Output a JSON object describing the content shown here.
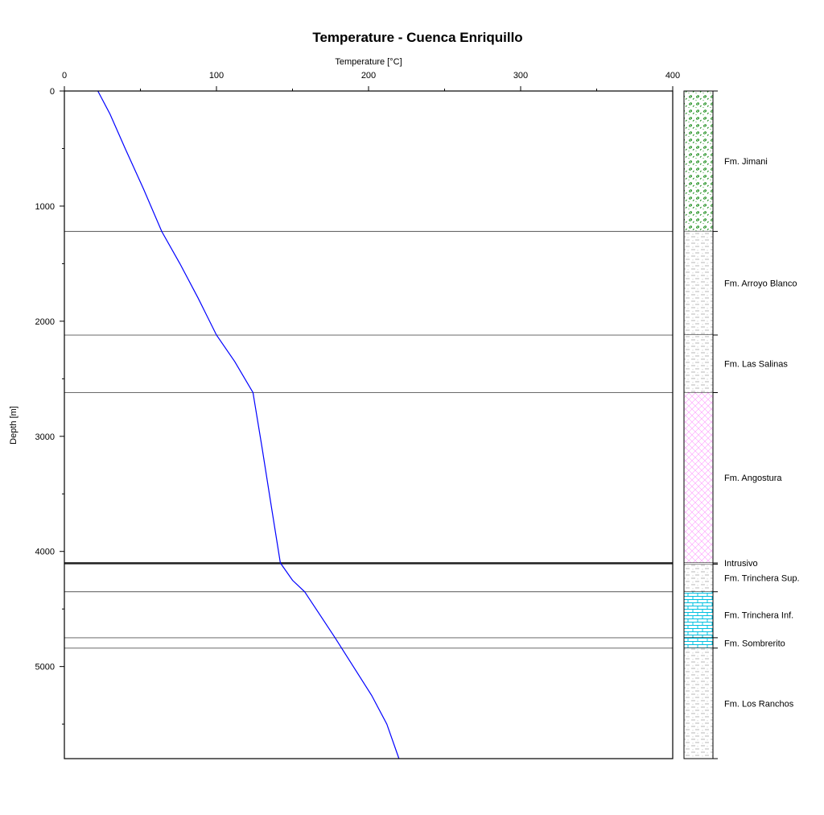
{
  "chart_data": {
    "type": "line",
    "title": "Temperature - Cuenca Enriquillo",
    "xlabel": "Temperature [°C]",
    "ylabel": "Depth [m]",
    "xlim": [
      0,
      400
    ],
    "ylim": [
      0,
      5800
    ],
    "x_ticks": [
      0,
      100,
      200,
      300,
      400
    ],
    "y_ticks": [
      0,
      1000,
      2000,
      3000,
      4000,
      5000
    ],
    "x_tick_labels": [
      "0",
      "100",
      "200",
      "300",
      "400"
    ],
    "y_tick_labels": [
      "0",
      "1000",
      "2000",
      "3000",
      "4000",
      "5000"
    ],
    "y_inverted": true,
    "x_axis_position": "top",
    "grid": false,
    "line_color": "#0000ff",
    "series": [
      {
        "x": [
          22,
          30,
          40,
          52,
          64,
          76,
          88,
          100,
          112,
          124,
          130,
          136,
          142,
          150,
          158,
          168,
          178,
          190,
          202,
          212,
          220
        ],
        "y": [
          0,
          200,
          500,
          850,
          1220,
          1500,
          1800,
          2120,
          2350,
          2620,
          3100,
          3600,
          4100,
          4250,
          4350,
          4550,
          4750,
          5000,
          5250,
          5500,
          5800
        ]
      }
    ],
    "formations": [
      {
        "name": "Fm. Jimani",
        "top": 0,
        "bottom": 1220,
        "pattern": "jimani",
        "color": "#008000",
        "boundary_line": "thin"
      },
      {
        "name": "Fm. Arroyo Blanco",
        "top": 1220,
        "bottom": 2120,
        "pattern": "shale",
        "color": "#a0a0a0",
        "boundary_line": "thin"
      },
      {
        "name": "Fm. Las Salinas",
        "top": 2120,
        "bottom": 2620,
        "pattern": "shale",
        "color": "#a0a0a0",
        "boundary_line": "thin"
      },
      {
        "name": "Fm. Angostura",
        "top": 2620,
        "bottom": 4100,
        "pattern": "cross",
        "color": "#ff99ff",
        "boundary_line": "thick"
      },
      {
        "name": "Intrusivo",
        "top": 4100,
        "bottom": 4110,
        "pattern": "none",
        "color": "#000000",
        "boundary_line": "thin"
      },
      {
        "name": "Fm. Trinchera Sup.",
        "top": 4110,
        "bottom": 4350,
        "pattern": "shale",
        "color": "#a0a0a0",
        "boundary_line": "thin"
      },
      {
        "name": "Fm. Trinchera Inf.",
        "top": 4350,
        "bottom": 4750,
        "pattern": "brick",
        "color": "#00c0e0",
        "boundary_line": "thin"
      },
      {
        "name": "Fm. Sombrerito",
        "top": 4750,
        "bottom": 4840,
        "pattern": "brick",
        "color": "#00c0e0",
        "boundary_line": "thin"
      },
      {
        "name": "Fm. Los Ranchos",
        "top": 4840,
        "bottom": 5800,
        "pattern": "shale",
        "color": "#a0a0a0",
        "boundary_line": "none"
      }
    ]
  }
}
